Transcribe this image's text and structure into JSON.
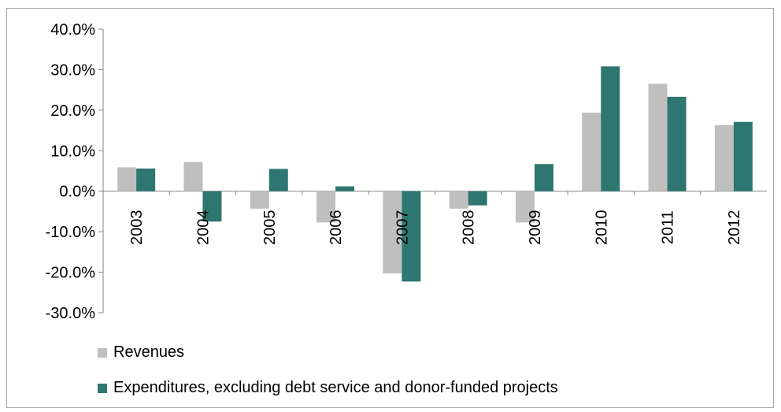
{
  "chart_data": {
    "type": "bar",
    "categories": [
      "2003",
      "2004",
      "2005",
      "2006",
      "2007",
      "2008",
      "2009",
      "2010",
      "2011",
      "2012"
    ],
    "series": [
      {
        "name": "Revenues",
        "color": "#bfbfbf",
        "values": [
          5.9,
          7.2,
          -4.3,
          -7.7,
          -20.3,
          -4.3,
          -7.7,
          19.4,
          26.5,
          16.3
        ]
      },
      {
        "name": "Expenditures, excluding debt service and donor-funded projects",
        "color": "#2e7670",
        "values": [
          5.6,
          -7.5,
          5.5,
          1.2,
          -22.3,
          -3.5,
          6.7,
          30.8,
          23.3,
          17.1
        ]
      }
    ],
    "yticks": [
      "40.0%",
      "30.0%",
      "20.0%",
      "10.0%",
      "0.0%",
      "-10.0%",
      "-20.0%",
      "-30.0%"
    ],
    "ylim": [
      -30,
      40
    ],
    "title": "",
    "xlabel": "",
    "ylabel": "",
    "legend_position": "bottom-left"
  }
}
